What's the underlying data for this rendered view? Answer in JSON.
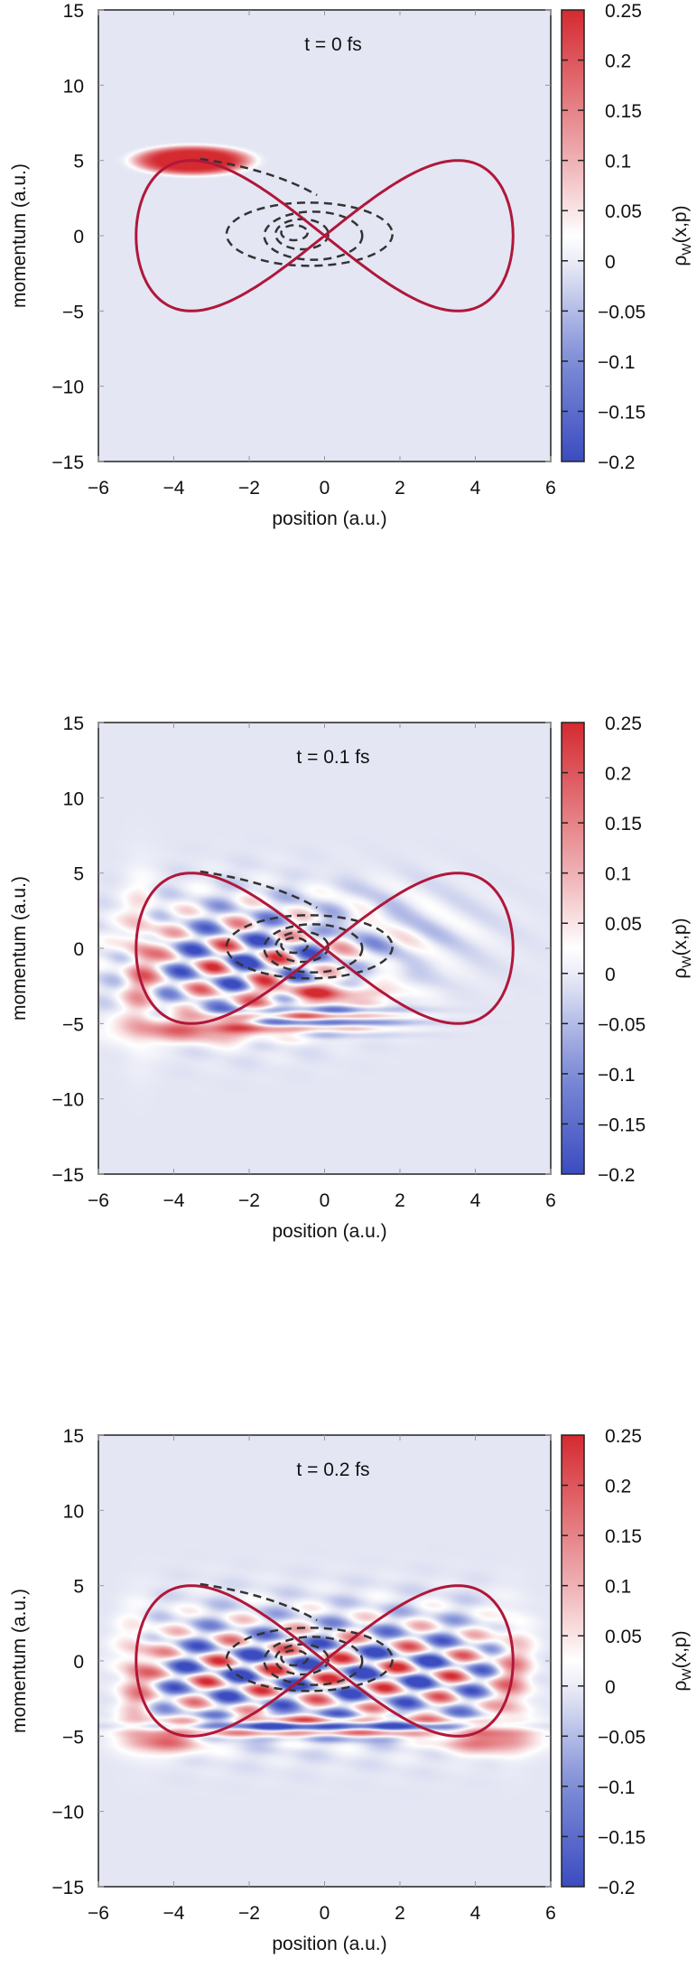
{
  "chart_data": [
    {
      "type": "heatmap",
      "title": "t = 0 fs",
      "xlabel": "position (a.u.)",
      "ylabel": "momentum (a.u.)",
      "xlim": [
        -6,
        6
      ],
      "ylim": [
        -15,
        15
      ],
      "xticks": [
        "-6",
        "-4",
        "-2",
        "0",
        "2",
        "4",
        "6"
      ],
      "yticks": [
        "-15",
        "-10",
        "-5",
        "0",
        "5",
        "10",
        "15"
      ],
      "colorbar": {
        "label": "ρ",
        "label_sub": "W",
        "label_rest": "(x,p)",
        "range": [
          -0.2,
          0.25
        ],
        "ticks": [
          "-0.2",
          "-0.15",
          "-0.1",
          "-0.05",
          "0",
          "0.05",
          "0.1",
          "0.15",
          "0.2",
          "0.25"
        ]
      },
      "state": "initial"
    },
    {
      "type": "heatmap",
      "title": "t = 0.1 fs",
      "xlabel": "position (a.u.)",
      "ylabel": "momentum (a.u.)",
      "xlim": [
        -6,
        6
      ],
      "ylim": [
        -15,
        15
      ],
      "xticks": [
        "-6",
        "-4",
        "-2",
        "0",
        "2",
        "4",
        "6"
      ],
      "yticks": [
        "-15",
        "-10",
        "-5",
        "0",
        "5",
        "10",
        "15"
      ],
      "colorbar": {
        "label": "ρ",
        "label_sub": "W",
        "label_rest": "(x,p)",
        "range": [
          -0.2,
          0.25
        ],
        "ticks": [
          "-0.2",
          "-0.15",
          "-0.1",
          "-0.05",
          "0",
          "0.05",
          "0.1",
          "0.15",
          "0.2",
          "0.25"
        ]
      },
      "state": "early"
    },
    {
      "type": "heatmap",
      "title": "t = 0.2 fs",
      "xlabel": "position (a.u.)",
      "ylabel": "momentum (a.u.)",
      "xlim": [
        -6,
        6
      ],
      "ylim": [
        -15,
        15
      ],
      "xticks": [
        "-6",
        "-4",
        "-2",
        "0",
        "2",
        "4",
        "6"
      ],
      "yticks": [
        "-15",
        "-10",
        "-5",
        "0",
        "5",
        "10",
        "15"
      ],
      "colorbar": {
        "label": "ρ",
        "label_sub": "W",
        "label_rest": "(x,p)",
        "range": [
          -0.2,
          0.25
        ],
        "ticks": [
          "-0.2",
          "-0.15",
          "-0.1",
          "-0.05",
          "0",
          "0.05",
          "0.1",
          "0.15",
          "0.2",
          "0.25"
        ]
      },
      "state": "late"
    }
  ],
  "colors": {
    "negative": "#3b4cc0",
    "zero": "#ffffff",
    "positive": "#d42a30",
    "background": "#e4e6f4",
    "trajectory": "#b0173a",
    "contours": "#333333"
  }
}
